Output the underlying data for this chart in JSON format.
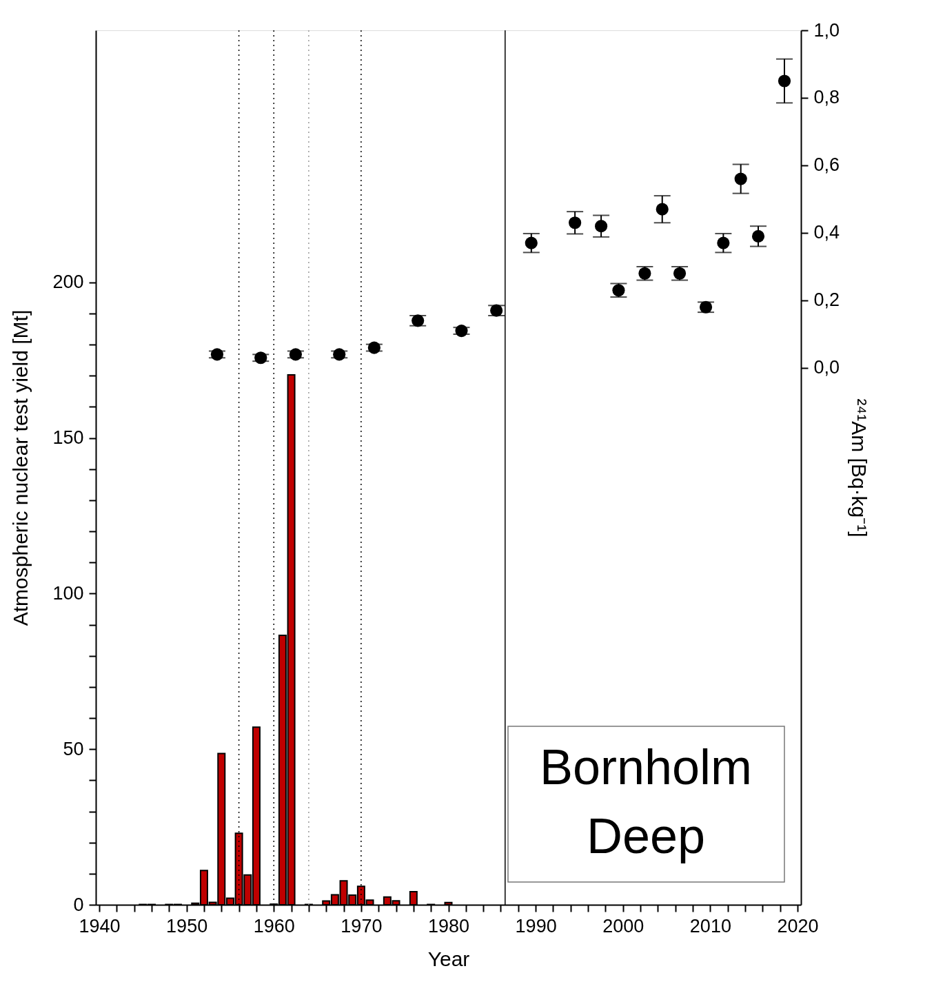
{
  "chart_data": {
    "type": "bar",
    "xlabel": "Year",
    "ylabel": "Atmospheric nuclear test yield [Mt]",
    "y2label": "²⁴¹Am [Bq·kg⁻¹]",
    "x": [
      1945,
      1946,
      1948,
      1949,
      1951,
      1952,
      1953,
      1954,
      1955,
      1956,
      1957,
      1958,
      1960,
      1961,
      1962,
      1964,
      1966,
      1967,
      1968,
      1969,
      1970,
      1971,
      1973,
      1974,
      1976,
      1978,
      1980
    ],
    "series": [
      {
        "color": "#c00000",
        "values": [
          0.1,
          0.1,
          0.1,
          0.1,
          0.5,
          11.0,
          0.8,
          48.6,
          2.1,
          23.0,
          9.6,
          57.1,
          0.2,
          86.6,
          170.3,
          0.1,
          1.2,
          3.2,
          7.7,
          3.1,
          5.9,
          1.5,
          2.5,
          1.3,
          4.2,
          0.1,
          0.7
        ]
      },
      {
        "type": "scatter",
        "axis": "y2",
        "color": "#000000",
        "marker": "circle",
        "x": [
          1953.5,
          1958.5,
          1962.5,
          1967.5,
          1971.5,
          1976.5,
          1981.5,
          1985.5,
          1989.5,
          1994.5,
          1997.5,
          1999.5,
          2002.5,
          2004.5,
          2006.5,
          2009.5,
          2011.5,
          2013.5,
          2015.5,
          2018.5
        ],
        "values": [
          0.04,
          0.03,
          0.04,
          0.04,
          0.06,
          0.14,
          0.11,
          0.17,
          0.37,
          0.43,
          0.42,
          0.23,
          0.28,
          0.47,
          0.28,
          0.18,
          0.37,
          0.56,
          0.39,
          0.85
        ],
        "errors": [
          0.01,
          0.01,
          0.01,
          0.01,
          0.01,
          0.015,
          0.01,
          0.015,
          0.028,
          0.033,
          0.032,
          0.02,
          0.02,
          0.04,
          0.02,
          0.015,
          0.028,
          0.043,
          0.03,
          0.065
        ]
      }
    ],
    "xlim": [
      1940,
      2020
    ],
    "xticks": [
      1940,
      {
        "value": 1942,
        "label": null
      },
      {
        "value": 1944,
        "label": null
      },
      {
        "value": 1946,
        "label": null
      },
      {
        "value": 1948,
        "label": null
      },
      1950,
      {
        "value": 1952,
        "label": null
      },
      {
        "value": 1954,
        "label": null
      },
      {
        "value": 1956,
        "label": null
      },
      {
        "value": 1958,
        "label": null
      },
      1960,
      {
        "value": 1962,
        "label": null
      },
      {
        "value": 1964,
        "label": null
      },
      {
        "value": 1966,
        "label": null
      },
      {
        "value": 1968,
        "label": null
      },
      1970,
      {
        "value": 1972,
        "label": null
      },
      {
        "value": 1974,
        "label": null
      },
      {
        "value": 1976,
        "label": null
      },
      {
        "value": 1978,
        "label": null
      },
      1980,
      {
        "value": 1982,
        "label": null
      },
      {
        "value": 1984,
        "label": null
      },
      {
        "value": 1986,
        "label": null
      },
      {
        "value": 1988,
        "label": null
      },
      1990,
      {
        "value": 1992,
        "label": null
      },
      {
        "value": 1994,
        "label": null
      },
      {
        "value": 1996,
        "label": null
      },
      {
        "value": 1998,
        "label": null
      },
      2000,
      {
        "value": 2002,
        "label": null
      },
      {
        "value": 2004,
        "label": null
      },
      {
        "value": 2006,
        "label": null
      },
      {
        "value": 2008,
        "label": null
      },
      2010,
      {
        "value": 2012,
        "label": null
      },
      {
        "value": 2014,
        "label": null
      },
      {
        "value": 2016,
        "label": null
      },
      {
        "value": 2018,
        "label": null
      },
      2020
    ],
    "ylim": [
      0,
      281
    ],
    "yticks": [
      0,
      {
        "value": 10,
        "label": null
      },
      {
        "value": 20,
        "label": null
      },
      {
        "value": 30,
        "label": null
      },
      {
        "value": 40,
        "label": null
      },
      50,
      {
        "value": 60,
        "label": null
      },
      {
        "value": 70,
        "label": null
      },
      {
        "value": 80,
        "label": null
      },
      {
        "value": 90,
        "label": null
      },
      100,
      {
        "value": 110,
        "label": null
      },
      {
        "value": 120,
        "label": null
      },
      {
        "value": 130,
        "label": null
      },
      {
        "value": 140,
        "label": null
      },
      150,
      {
        "value": 160,
        "label": null
      },
      {
        "value": 170,
        "label": null
      },
      {
        "value": 180,
        "label": null
      },
      {
        "value": 190,
        "label": null
      },
      200
    ],
    "y2lim": [
      -1.59,
      1.0
    ],
    "y2ticks": [
      {
        "value": 0.0,
        "label": "0,0"
      },
      {
        "value": 0.2,
        "label": "0,2"
      },
      {
        "value": 0.4,
        "label": "0,4"
      },
      {
        "value": 0.6,
        "label": "0,6"
      },
      {
        "value": 0.8,
        "label": "0,8"
      },
      {
        "value": 1.0,
        "label": "1,0"
      }
    ],
    "ref_lines": [
      {
        "axis": "x",
        "value": 1956,
        "color": "#000000",
        "line_style": "dotted"
      },
      {
        "axis": "x",
        "value": 1960,
        "color": "#000000",
        "line_style": "dotted"
      },
      {
        "axis": "x",
        "value": 1964,
        "color": "#999999",
        "line_style": "dotted"
      },
      {
        "axis": "x",
        "value": 1970,
        "color": "#000000",
        "line_style": "dotted"
      },
      {
        "axis": "x",
        "value": 1986.5,
        "color": "#000000",
        "line_style": "solid"
      }
    ],
    "annotations": [
      "Bornholm Deep"
    ],
    "grid": false
  }
}
